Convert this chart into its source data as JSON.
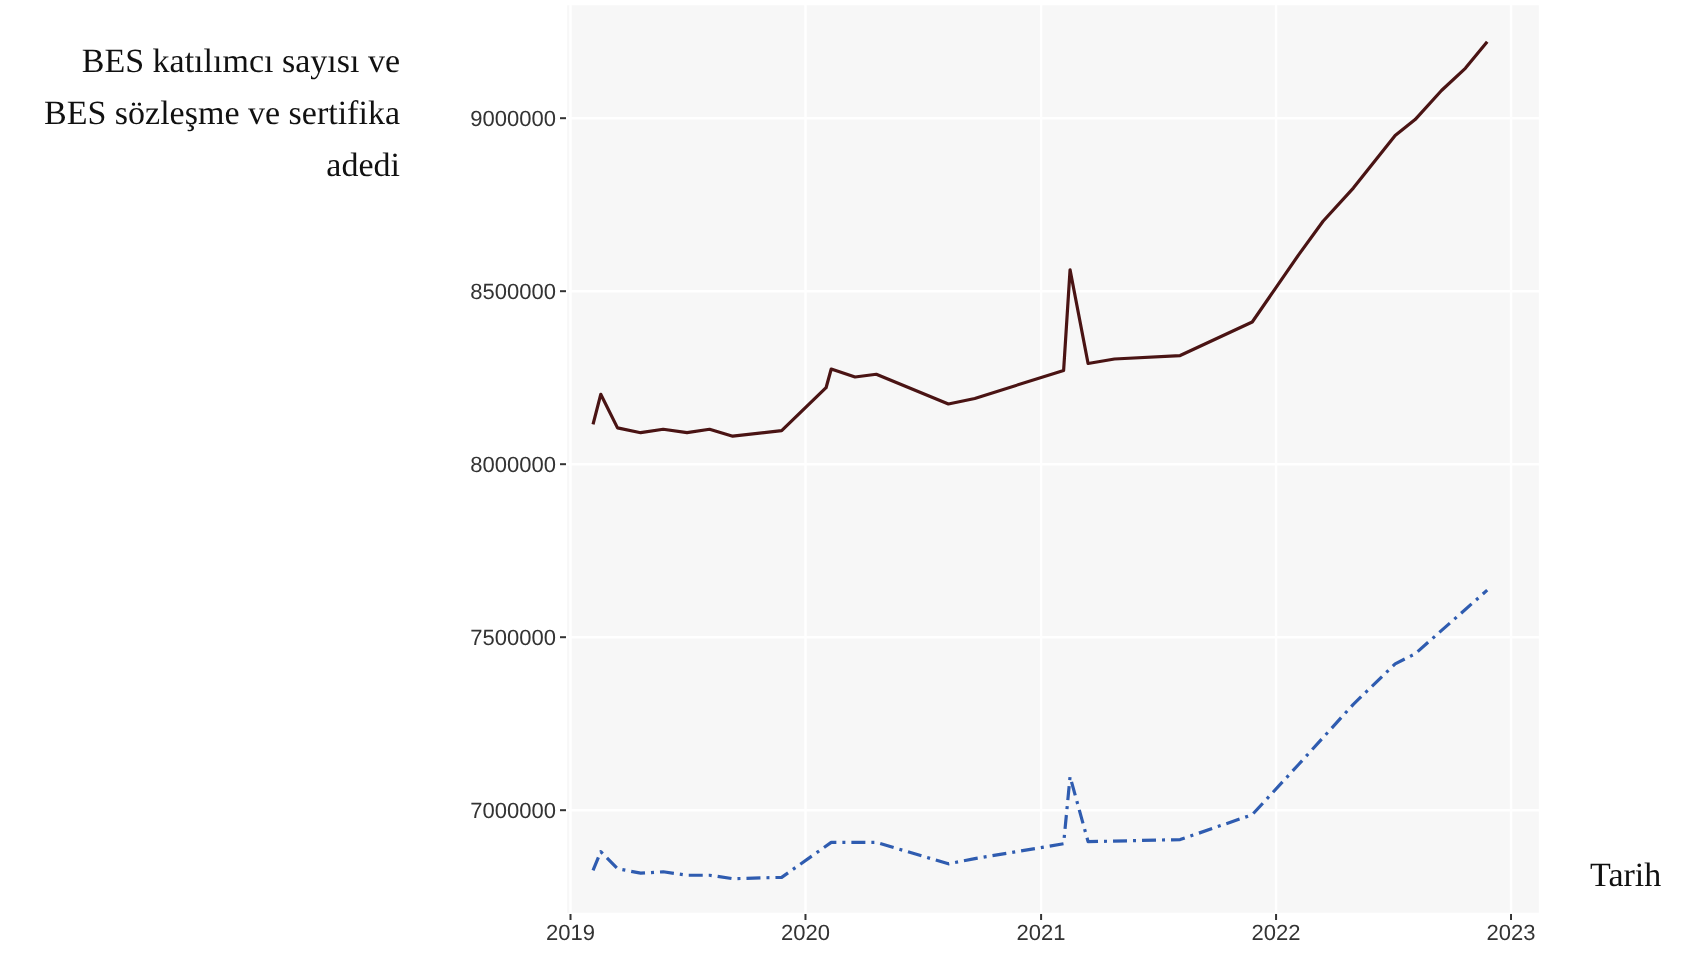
{
  "chart_data": {
    "type": "line",
    "xlabel": "Tarih",
    "ylabel": "BES katılımcı sayısı ve BES sözleşme ve sertifika adedi",
    "xlim": [
      "2018-12-25",
      "2023-02-15"
    ],
    "ylim": [
      6700000,
      9330000
    ],
    "xticks": [
      {
        "value": "2019",
        "label": "2019"
      },
      {
        "value": "2020",
        "label": "2020"
      },
      {
        "value": "2021",
        "label": "2021"
      },
      {
        "value": "2022",
        "label": "2022"
      },
      {
        "value": "2023",
        "label": "2023"
      }
    ],
    "yticks": [
      7000000,
      7500000,
      8000000,
      8500000,
      9000000
    ],
    "grid": true,
    "marker": "none",
    "series": [
      {
        "color": "#4a1414",
        "line_style": "solid",
        "x": [
          "2019-02-05",
          "2019-02-17",
          "2019-03-15",
          "2019-04-20",
          "2019-05-25",
          "2019-07-01",
          "2019-08-05",
          "2019-09-10",
          "2019-11-25",
          "2020-02-02",
          "2020-02-10",
          "2020-03-18",
          "2020-04-20",
          "2020-08-10",
          "2020-09-20",
          "2021-02-05",
          "2021-02-15",
          "2021-03-15",
          "2021-04-25",
          "2021-08-05",
          "2021-11-25",
          "2022-02-05",
          "2022-03-15",
          "2022-05-01",
          "2022-07-05",
          "2022-08-05",
          "2022-09-15",
          "2022-10-22",
          "2022-11-25"
        ],
        "values": [
          8115000,
          8202000,
          8105000,
          8091000,
          8101000,
          8091000,
          8101000,
          8081000,
          8097000,
          8221000,
          8275000,
          8252000,
          8260000,
          8174000,
          8190000,
          8271000,
          8562000,
          8291000,
          8304000,
          8314000,
          8411000,
          8605000,
          8702000,
          8798000,
          8950000,
          8996000,
          9080000,
          9144000,
          9221000
        ]
      },
      {
        "color": "#2f5cb0",
        "line_style": "dashed",
        "x": [
          "2019-02-05",
          "2019-02-17",
          "2019-03-15",
          "2019-04-20",
          "2019-05-25",
          "2019-07-01",
          "2019-08-05",
          "2019-09-10",
          "2019-11-25",
          "2020-02-10",
          "2020-04-20",
          "2020-08-10",
          "2020-09-20",
          "2021-02-05",
          "2021-02-15",
          "2021-03-15",
          "2021-08-05",
          "2021-11-25",
          "2022-02-05",
          "2022-05-01",
          "2022-07-05",
          "2022-08-05",
          "2022-11-25"
        ],
        "values": [
          6826000,
          6880000,
          6831000,
          6818000,
          6822000,
          6812000,
          6812000,
          6802000,
          6806000,
          6907000,
          6907000,
          6845000,
          6860000,
          6903000,
          7097000,
          6909000,
          6915000,
          6987000,
          7132000,
          7306000,
          7423000,
          7452000,
          7636000
        ]
      }
    ]
  }
}
